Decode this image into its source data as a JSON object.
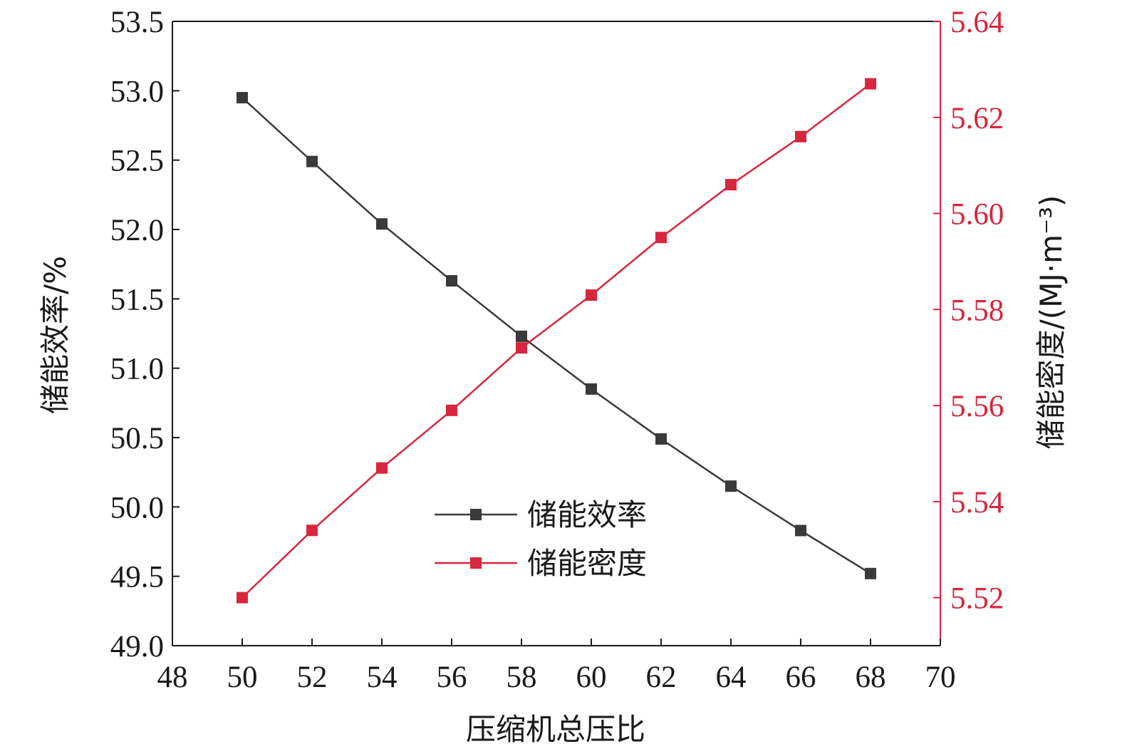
{
  "chart_data": {
    "type": "line",
    "xlabel": "压缩机总压比",
    "ylabel_left": "储能效率/%",
    "ylabel_right": "储能密度/(MJ·m⁻³)",
    "xlim": [
      48,
      70
    ],
    "ylim_left": [
      49.0,
      53.5
    ],
    "ylim_right": [
      5.51,
      5.64
    ],
    "x_ticks": [
      "48",
      "50",
      "52",
      "54",
      "56",
      "58",
      "60",
      "62",
      "64",
      "66",
      "68",
      "70"
    ],
    "y_left_ticks": [
      "49.0",
      "49.5",
      "50.0",
      "50.5",
      "51.0",
      "51.5",
      "52.0",
      "52.5",
      "53.0",
      "53.5"
    ],
    "y_right_ticks": [
      "5.52",
      "5.54",
      "5.56",
      "5.58",
      "5.60",
      "5.62",
      "5.64"
    ],
    "grid": false,
    "legend_position": "center-bottom",
    "x": [
      50,
      52,
      54,
      56,
      58,
      60,
      62,
      64,
      66,
      68
    ],
    "series": [
      {
        "name": "储能效率",
        "axis": "left",
        "color": "#3a3a3a",
        "marker": "square",
        "values": [
          52.95,
          52.49,
          52.04,
          51.63,
          51.23,
          50.85,
          50.49,
          50.15,
          49.83,
          49.52
        ]
      },
      {
        "name": "储能密度",
        "axis": "right",
        "color": "#d7263d",
        "marker": "square",
        "values": [
          5.52,
          5.534,
          5.547,
          5.559,
          5.572,
          5.583,
          5.595,
          5.606,
          5.616,
          5.627
        ]
      }
    ],
    "colors": {
      "left_axis": "#1a1a1a",
      "right_axis": "#d7263d"
    }
  }
}
